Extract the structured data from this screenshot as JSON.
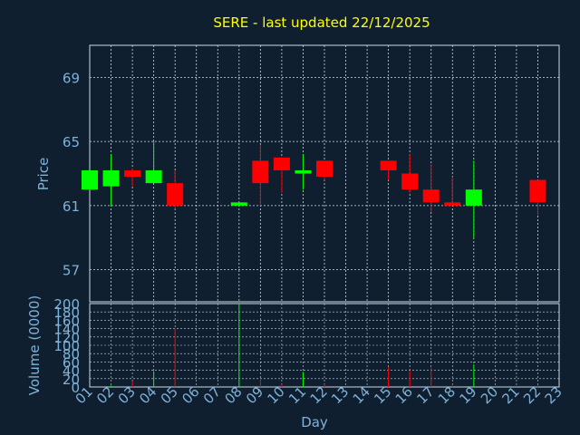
{
  "chart_data": {
    "title": "SERE - last updated 22/12/2025",
    "type": "candlestick",
    "xlabel": "Day",
    "x_ticks": [
      "01",
      "02",
      "03",
      "04",
      "05",
      "06",
      "07",
      "08",
      "09",
      "10",
      "11",
      "12",
      "13",
      "14",
      "15",
      "16",
      "17",
      "18",
      "19",
      "20",
      "21",
      "22",
      "23"
    ],
    "price_panel": {
      "ylabel": "Price",
      "ylim": [
        55,
        71
      ],
      "yticks": [
        57,
        61,
        65,
        69
      ],
      "grid": true,
      "candles": [
        {
          "day": 1,
          "open": 62.0,
          "high": 63.2,
          "low": 62.0,
          "close": 63.2
        },
        {
          "day": 2,
          "open": 62.2,
          "high": 64.2,
          "low": 61.0,
          "close": 63.2
        },
        {
          "day": 3,
          "open": 63.2,
          "high": 63.3,
          "low": 62.2,
          "close": 62.8
        },
        {
          "day": 4,
          "open": 62.4,
          "high": 65.0,
          "low": 62.4,
          "close": 63.2
        },
        {
          "day": 5,
          "open": 62.4,
          "high": 63.2,
          "low": 60.8,
          "close": 61.0
        },
        {
          "day": 8,
          "open": 61.0,
          "high": 61.2,
          "low": 61.0,
          "close": 61.2
        },
        {
          "day": 9,
          "open": 63.8,
          "high": 64.8,
          "low": 61.0,
          "close": 62.4
        },
        {
          "day": 10,
          "open": 64.0,
          "high": 64.0,
          "low": 61.8,
          "close": 63.2
        },
        {
          "day": 11,
          "open": 63.0,
          "high": 64.2,
          "low": 62.0,
          "close": 63.2
        },
        {
          "day": 12,
          "open": 63.8,
          "high": 63.8,
          "low": 62.6,
          "close": 62.8
        },
        {
          "day": 15,
          "open": 63.8,
          "high": 63.8,
          "low": 62.6,
          "close": 63.2
        },
        {
          "day": 16,
          "open": 63.0,
          "high": 64.2,
          "low": 61.8,
          "close": 62.0
        },
        {
          "day": 17,
          "open": 62.0,
          "high": 63.6,
          "low": 60.6,
          "close": 61.2
        },
        {
          "day": 18,
          "open": 61.2,
          "high": 62.8,
          "low": 61.0,
          "close": 61.0
        },
        {
          "day": 19,
          "open": 61.0,
          "high": 63.8,
          "low": 59.0,
          "close": 62.0
        },
        {
          "day": 22,
          "open": 62.6,
          "high": 62.6,
          "low": 60.4,
          "close": 61.2
        }
      ]
    },
    "volume_panel": {
      "ylabel": "Volume (0000)",
      "ylim": [
        0,
        200
      ],
      "yticks": [
        0,
        20,
        40,
        60,
        80,
        100,
        120,
        140,
        160,
        180,
        200
      ],
      "grid": true,
      "bars": [
        {
          "day": 2,
          "value": 3,
          "up": true
        },
        {
          "day": 3,
          "value": 14,
          "up": false
        },
        {
          "day": 4,
          "value": 38,
          "up": true
        },
        {
          "day": 5,
          "value": 140,
          "up": false
        },
        {
          "day": 8,
          "value": 200,
          "up": true
        },
        {
          "day": 9,
          "value": 18,
          "up": false
        },
        {
          "day": 10,
          "value": 6,
          "up": false
        },
        {
          "day": 11,
          "value": 36,
          "up": true
        },
        {
          "day": 12,
          "value": 6,
          "up": false
        },
        {
          "day": 15,
          "value": 48,
          "up": false
        },
        {
          "day": 16,
          "value": 40,
          "up": false
        },
        {
          "day": 17,
          "value": 46,
          "up": false
        },
        {
          "day": 18,
          "value": 6,
          "up": false
        },
        {
          "day": 19,
          "value": 54,
          "up": true
        },
        {
          "day": 22,
          "value": 5,
          "up": false
        }
      ]
    },
    "colors": {
      "background": "#0f1f2f",
      "title": "#ffff00",
      "axis_text": "#7fb2d8",
      "grid": "#cfd8e3",
      "up": "#00ff00",
      "down": "#ff0000"
    }
  }
}
